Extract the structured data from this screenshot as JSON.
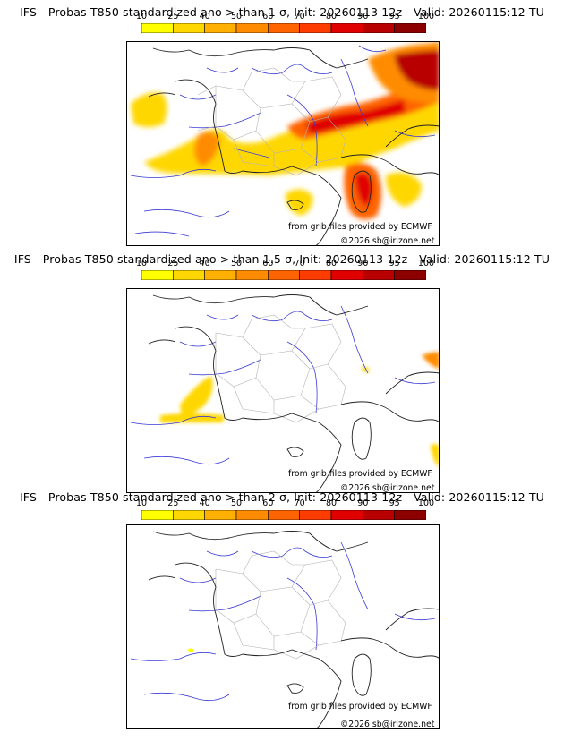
{
  "colorbar": {
    "labels": [
      "10",
      "25",
      "40",
      "50",
      "60",
      "70",
      "80",
      "90",
      "95",
      "100"
    ],
    "colors": [
      "#ffff00",
      "#ffd700",
      "#ffb000",
      "#ff8c00",
      "#ff6400",
      "#ff3c00",
      "#e00000",
      "#b80000",
      "#8c0000",
      "#5a0000"
    ]
  },
  "panels": [
    {
      "title": "IFS - Probas T850  standardized ano > than 1 σ, Init: 20260113 12z - Valid: 20260115:12 TU",
      "credit_grib": "from grib files provided by ECMWF",
      "credit_copy": "©2026 sb@irizone.net"
    },
    {
      "title": "IFS - Probas T850  standardized ano > than 1.5 σ, Init: 20260113 12z - Valid: 20260115:12 TU",
      "credit_grib": "from grib files provided by ECMWF",
      "credit_copy": "©2026 sb@irizone.net"
    },
    {
      "title": "IFS - Probas T850  standardized ano > than 2 σ, Init: 20260113 12z - Valid: 20260115:12 TU",
      "credit_grib": "from grib files provided by ECMWF",
      "credit_copy": "©2026 sb@irizone.net"
    }
  ]
}
